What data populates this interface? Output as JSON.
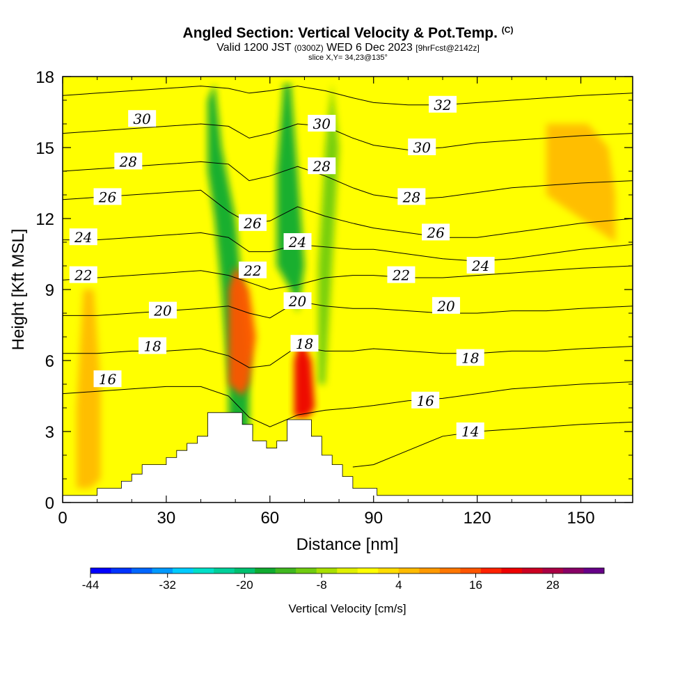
{
  "header": {
    "title": "Angled Section: Vertical Velocity & Pot.Temp.",
    "title_tag": "(C)",
    "valid_pre": "Valid 1200 JST",
    "valid_utc": "(0300Z)",
    "valid_date": "WED 6 Dec 2023",
    "valid_fcst": "[9hrFcst@2142z]",
    "slice": "slice X,Y= 34,23@135°"
  },
  "colorbar": {
    "label": "Vertical Velocity [cm/s]",
    "ticks": [
      "-44",
      "-32",
      "-20",
      "-8",
      "4",
      "16",
      "28"
    ],
    "colors": [
      "#0000ff",
      "#0033ff",
      "#0066ff",
      "#0099ff",
      "#00ccff",
      "#00e0c8",
      "#00d09a",
      "#00c070",
      "#10ab30",
      "#40b820",
      "#70cc10",
      "#a8e000",
      "#e0f000",
      "#ffff00",
      "#ffdd00",
      "#ffbb00",
      "#ff9900",
      "#ff7700",
      "#ff5500",
      "#ff2200",
      "#ee0000",
      "#cc0022",
      "#aa0044",
      "#880066",
      "#660088"
    ]
  },
  "chart_data": {
    "type": "heatmap",
    "title": "Angled Section: Vertical Velocity & Pot.Temp.",
    "xlabel": "Distance [nm]",
    "ylabel": "Height [Kft MSL]",
    "xlim": [
      0,
      165
    ],
    "ylim": [
      0,
      18
    ],
    "xticks": [
      0,
      30,
      60,
      90,
      120,
      150
    ],
    "yticks": [
      0,
      3,
      6,
      9,
      12,
      15,
      18
    ],
    "fill_variable": "Vertical Velocity [cm/s]",
    "fill_range": [
      -44,
      36
    ],
    "contour_variable": "Potential temperature",
    "terrain_steps": [
      [
        0,
        0.3
      ],
      [
        10,
        0.3
      ],
      [
        10,
        0.6
      ],
      [
        17,
        0.6
      ],
      [
        17,
        0.9
      ],
      [
        20,
        0.9
      ],
      [
        20,
        1.2
      ],
      [
        23,
        1.2
      ],
      [
        23,
        1.6
      ],
      [
        30,
        1.6
      ],
      [
        30,
        1.9
      ],
      [
        33,
        1.9
      ],
      [
        33,
        2.2
      ],
      [
        36,
        2.2
      ],
      [
        36,
        2.5
      ],
      [
        39,
        2.5
      ],
      [
        39,
        2.8
      ],
      [
        42,
        2.8
      ],
      [
        42,
        3.8
      ],
      [
        52,
        3.8
      ],
      [
        52,
        3.3
      ],
      [
        55,
        3.3
      ],
      [
        55,
        2.6
      ],
      [
        59,
        2.6
      ],
      [
        59,
        2.3
      ],
      [
        62,
        2.3
      ],
      [
        62,
        2.6
      ],
      [
        65,
        2.6
      ],
      [
        65,
        3.5
      ],
      [
        72,
        3.5
      ],
      [
        72,
        2.8
      ],
      [
        75,
        2.8
      ],
      [
        75,
        2.0
      ],
      [
        78,
        2.0
      ],
      [
        78,
        1.6
      ],
      [
        81,
        1.6
      ],
      [
        81,
        1.1
      ],
      [
        84,
        1.1
      ],
      [
        84,
        0.6
      ],
      [
        91,
        0.6
      ],
      [
        91,
        0.3
      ],
      [
        165,
        0.3
      ]
    ],
    "velocity_features": [
      {
        "type": "downdraft",
        "x": [
          48,
          48,
          46,
          44,
          42,
          42,
          44,
          46,
          50,
          52,
          54,
          54,
          52,
          50
        ],
        "y": [
          2.5,
          5,
          9,
          12,
          14,
          17,
          17.7,
          15,
          12,
          9,
          6,
          3,
          2.5,
          2.5
        ],
        "value": -18
      },
      {
        "type": "downdraft",
        "x": [
          62,
          62,
          64,
          66,
          68,
          70,
          68,
          66
        ],
        "y": [
          10,
          14,
          17.7,
          17.7,
          14,
          10,
          8,
          9
        ],
        "value": -16
      },
      {
        "type": "downdraft",
        "x": [
          74,
          74,
          76,
          78,
          80,
          78,
          76
        ],
        "y": [
          5,
          10,
          15,
          17.7,
          15,
          10,
          5
        ],
        "value": -12
      },
      {
        "type": "updraft",
        "x": [
          48,
          48,
          50,
          54,
          56,
          54,
          52
        ],
        "y": [
          5,
          9,
          10,
          9,
          7,
          5,
          4.5
        ],
        "value": 14
      },
      {
        "type": "updraft",
        "x": [
          67,
          67,
          69,
          72,
          73,
          71,
          69
        ],
        "y": [
          3.6,
          6,
          7,
          6,
          4,
          3.6,
          3.6
        ],
        "value": 22
      },
      {
        "type": "updraft",
        "x": [
          4,
          4,
          6,
          9,
          11,
          11,
          8
        ],
        "y": [
          0.6,
          4,
          9,
          9,
          5,
          1,
          0.6
        ],
        "value": 6
      },
      {
        "type": "updraft",
        "x": [
          140,
          140,
          146,
          152,
          158,
          160,
          160,
          150
        ],
        "y": [
          13,
          16,
          16,
          16,
          15,
          13,
          11,
          12
        ],
        "value": 6
      }
    ],
    "series": [
      {
        "name": "14",
        "x": [
          84,
          90,
          100,
          110,
          120,
          130,
          140,
          150,
          165
        ],
        "y": [
          1.5,
          1.6,
          2.2,
          2.8,
          3.0,
          3.1,
          3.2,
          3.3,
          3.4
        ]
      },
      {
        "name": "16",
        "x": [
          0,
          10,
          20,
          30,
          40,
          48,
          54,
          60,
          68,
          76,
          84,
          90,
          100,
          110,
          120,
          130,
          140,
          150,
          165
        ],
        "y": [
          4.6,
          4.7,
          4.8,
          4.9,
          4.9,
          4.5,
          3.6,
          3.2,
          3.7,
          3.9,
          4.0,
          4.1,
          4.3,
          4.4,
          4.6,
          4.8,
          4.9,
          5.0,
          5.1
        ]
      },
      {
        "name": "18",
        "x": [
          0,
          10,
          20,
          30,
          40,
          48,
          54,
          60,
          68,
          76,
          84,
          90,
          100,
          110,
          120,
          130,
          140,
          150,
          165
        ],
        "y": [
          6.3,
          6.3,
          6.4,
          6.4,
          6.5,
          6.2,
          5.7,
          5.8,
          6.6,
          6.4,
          6.4,
          6.5,
          6.4,
          6.3,
          6.3,
          6.4,
          6.4,
          6.5,
          6.6
        ]
      },
      {
        "name": "20",
        "x": [
          0,
          10,
          20,
          30,
          40,
          48,
          54,
          60,
          68,
          76,
          84,
          90,
          100,
          110,
          120,
          130,
          140,
          150,
          165
        ],
        "y": [
          7.9,
          7.9,
          8.0,
          8.1,
          8.2,
          8.3,
          8.0,
          7.8,
          8.5,
          8.3,
          8.2,
          8.2,
          8.1,
          8.0,
          8.0,
          8.1,
          8.1,
          8.2,
          8.3
        ]
      },
      {
        "name": "22",
        "x": [
          0,
          10,
          20,
          30,
          40,
          48,
          54,
          60,
          68,
          76,
          84,
          90,
          100,
          110,
          120,
          130,
          140,
          150,
          165
        ],
        "y": [
          9.4,
          9.5,
          9.6,
          9.7,
          9.8,
          9.6,
          9.3,
          9.0,
          9.2,
          9.5,
          9.6,
          9.6,
          9.5,
          9.5,
          9.6,
          9.7,
          9.8,
          9.9,
          10.0
        ]
      },
      {
        "name": "24",
        "x": [
          0,
          10,
          20,
          30,
          40,
          48,
          54,
          60,
          68,
          76,
          84,
          90,
          100,
          110,
          120,
          130,
          140,
          150,
          165
        ],
        "y": [
          11.1,
          11.1,
          11.2,
          11.3,
          11.4,
          11.2,
          10.6,
          10.6,
          10.9,
          10.8,
          10.7,
          10.7,
          10.5,
          10.3,
          10.2,
          10.3,
          10.5,
          10.7,
          10.9
        ]
      },
      {
        "name": "26",
        "x": [
          0,
          10,
          20,
          30,
          40,
          48,
          54,
          60,
          68,
          76,
          84,
          90,
          100,
          110,
          120,
          130,
          140,
          150,
          165
        ],
        "y": [
          12.8,
          12.9,
          13.0,
          13.1,
          13.2,
          12.3,
          11.8,
          11.9,
          12.5,
          12.1,
          11.8,
          11.6,
          11.4,
          11.2,
          11.2,
          11.4,
          11.6,
          11.8,
          12.0
        ]
      },
      {
        "name": "28",
        "x": [
          0,
          10,
          20,
          30,
          40,
          48,
          54,
          60,
          68,
          76,
          84,
          90,
          100,
          110,
          120,
          130,
          140,
          150,
          165
        ],
        "y": [
          14.0,
          14.1,
          14.2,
          14.3,
          14.4,
          14.3,
          13.6,
          13.8,
          14.2,
          13.8,
          13.3,
          13.0,
          12.8,
          12.9,
          13.1,
          13.3,
          13.4,
          13.5,
          13.6
        ]
      },
      {
        "name": "30",
        "x": [
          0,
          10,
          20,
          30,
          40,
          48,
          54,
          60,
          68,
          76,
          84,
          90,
          100,
          110,
          120,
          130,
          140,
          150,
          165
        ],
        "y": [
          15.6,
          15.7,
          15.8,
          15.9,
          16.0,
          15.9,
          15.4,
          15.6,
          16.0,
          15.9,
          15.4,
          15.1,
          14.9,
          15.0,
          15.2,
          15.3,
          15.4,
          15.5,
          15.6
        ]
      },
      {
        "name": "32",
        "x": [
          0,
          10,
          20,
          30,
          40,
          48,
          54,
          60,
          68,
          76,
          84,
          90,
          100,
          110,
          120,
          130,
          140,
          150,
          165
        ],
        "y": [
          17.2,
          17.3,
          17.4,
          17.5,
          17.6,
          17.5,
          17.3,
          17.4,
          17.6,
          17.4,
          17.1,
          16.9,
          16.8,
          16.8,
          16.9,
          17.0,
          17.1,
          17.2,
          17.3
        ]
      }
    ],
    "contour_labels": [
      {
        "text": "30",
        "x": 23,
        "y": 16.2
      },
      {
        "text": "28",
        "x": 19,
        "y": 14.4
      },
      {
        "text": "26",
        "x": 13,
        "y": 12.9
      },
      {
        "text": "24",
        "x": 6,
        "y": 11.2
      },
      {
        "text": "22",
        "x": 6,
        "y": 9.6
      },
      {
        "text": "20",
        "x": 29,
        "y": 8.1
      },
      {
        "text": "18",
        "x": 26,
        "y": 6.6
      },
      {
        "text": "16",
        "x": 13,
        "y": 5.2
      },
      {
        "text": "26",
        "x": 55,
        "y": 11.8
      },
      {
        "text": "24",
        "x": 68,
        "y": 11.0
      },
      {
        "text": "22",
        "x": 55,
        "y": 9.8
      },
      {
        "text": "20",
        "x": 68,
        "y": 8.5
      },
      {
        "text": "18",
        "x": 70,
        "y": 6.7
      },
      {
        "text": "30",
        "x": 75,
        "y": 16.0
      },
      {
        "text": "28",
        "x": 75,
        "y": 14.2
      },
      {
        "text": "32",
        "x": 110,
        "y": 16.8
      },
      {
        "text": "30",
        "x": 104,
        "y": 15.0
      },
      {
        "text": "28",
        "x": 101,
        "y": 12.9
      },
      {
        "text": "26",
        "x": 108,
        "y": 11.4
      },
      {
        "text": "24",
        "x": 121,
        "y": 10.0
      },
      {
        "text": "22",
        "x": 98,
        "y": 9.6
      },
      {
        "text": "20",
        "x": 111,
        "y": 8.3
      },
      {
        "text": "18",
        "x": 118,
        "y": 6.1
      },
      {
        "text": "16",
        "x": 105,
        "y": 4.3
      },
      {
        "text": "14",
        "x": 118,
        "y": 3.0
      }
    ]
  }
}
